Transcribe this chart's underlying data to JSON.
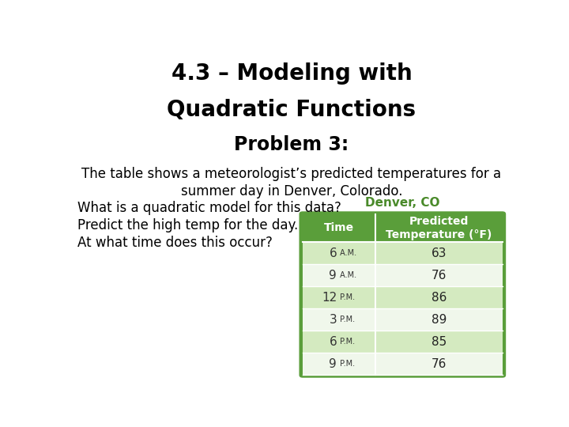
{
  "title_line1": "4.3 – Modeling with",
  "title_line2": "Quadratic Functions",
  "subtitle": "Problem 3:",
  "body_line1": "The table shows a meteorologist’s predicted temperatures for a",
  "body_line2": "summer day in Denver, Colorado.",
  "question1": "What is a quadratic model for this data?",
  "question2": "Predict the high temp for the day.",
  "question3": "At what time does this occur?",
  "table_title": "Denver, CO",
  "col_header1": "Time",
  "col_header2": "Predicted\nTemperature (°F)",
  "times": [
    "6 A.M.",
    "9 A.M.",
    "12 P.M.",
    "3 P.M.",
    "6 P.M.",
    "9 P.M."
  ],
  "temps": [
    "63",
    "76",
    "86",
    "89",
    "85",
    "76"
  ],
  "header_bg": "#5a9e3a",
  "header_text": "#ffffff",
  "row_bg_light": "#d4eac0",
  "row_bg_white": "#f0f7eb",
  "table_title_color": "#4a8a2a",
  "border_color": "#5a9e3a",
  "bg_color": "#ffffff",
  "title_fontsize": 20,
  "subtitle_fontsize": 17,
  "body_fontsize": 12,
  "question_fontsize": 12,
  "table_title_fontsize": 11,
  "table_header_fontsize": 10,
  "table_data_fontsize": 11,
  "table_period_fontsize": 7
}
